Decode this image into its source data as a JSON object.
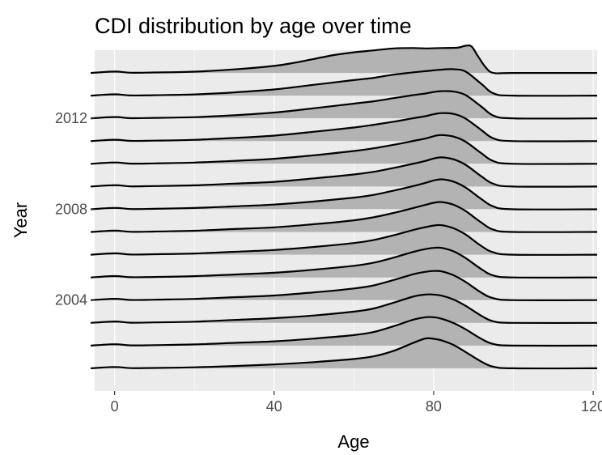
{
  "chart_data": {
    "type": "area",
    "subtype": "ridgeline",
    "title": "CDI distribution by age over time",
    "xlabel": "Age",
    "ylabel": "Year",
    "xlim": [
      -5,
      121
    ],
    "ylim": [
      2000,
      2015
    ],
    "x_ticks": [
      0,
      40,
      80,
      120
    ],
    "x_tick_labels": [
      "0",
      "40",
      "80",
      "120"
    ],
    "y_ticks": [
      2004,
      2008,
      2012
    ],
    "y_tick_labels": [
      "2004",
      "2008",
      "2012"
    ],
    "grid": true,
    "background": "#ebebeb",
    "grid_color": "#ffffff",
    "fill_color": "#b3b3b3",
    "line_color": "#000000",
    "tick_color": "#333333",
    "series": [
      {
        "year": 2001,
        "x": [
          -6,
          0,
          4,
          10,
          20,
          30,
          40,
          50,
          60,
          65,
          70,
          75,
          78,
          80,
          82,
          85,
          88,
          92,
          95,
          100,
          121
        ],
        "density": [
          0.0,
          0.035,
          0.005,
          0.01,
          0.025,
          0.06,
          0.1,
          0.16,
          0.24,
          0.31,
          0.45,
          0.66,
          0.77,
          0.76,
          0.72,
          0.6,
          0.42,
          0.17,
          0.04,
          0.0,
          0.0
        ]
      },
      {
        "year": 2002,
        "x": [
          -6,
          0,
          4,
          10,
          20,
          30,
          40,
          50,
          60,
          65,
          70,
          75,
          78,
          80,
          82,
          85,
          88,
          92,
          95,
          100,
          121
        ],
        "density": [
          0.0,
          0.035,
          0.005,
          0.012,
          0.03,
          0.07,
          0.11,
          0.18,
          0.27,
          0.35,
          0.5,
          0.67,
          0.73,
          0.73,
          0.69,
          0.58,
          0.42,
          0.17,
          0.04,
          0.0,
          0.0
        ]
      },
      {
        "year": 2003,
        "x": [
          -6,
          0,
          4,
          10,
          20,
          30,
          40,
          50,
          60,
          65,
          70,
          75,
          78,
          80,
          82,
          85,
          88,
          92,
          95,
          100,
          121
        ],
        "density": [
          0.0,
          0.035,
          0.005,
          0.012,
          0.032,
          0.075,
          0.12,
          0.19,
          0.29,
          0.37,
          0.52,
          0.68,
          0.73,
          0.73,
          0.7,
          0.6,
          0.44,
          0.18,
          0.04,
          0.0,
          0.0
        ]
      },
      {
        "year": 2004,
        "x": [
          -6,
          0,
          4,
          10,
          20,
          30,
          40,
          50,
          60,
          65,
          70,
          75,
          78,
          80,
          82,
          85,
          88,
          92,
          95,
          100,
          121
        ],
        "density": [
          0.0,
          0.035,
          0.005,
          0.012,
          0.032,
          0.075,
          0.12,
          0.2,
          0.3,
          0.38,
          0.52,
          0.67,
          0.73,
          0.75,
          0.74,
          0.64,
          0.47,
          0.19,
          0.05,
          0.0,
          0.0
        ]
      },
      {
        "year": 2005,
        "x": [
          -6,
          0,
          4,
          10,
          20,
          30,
          40,
          50,
          60,
          65,
          70,
          75,
          78,
          80,
          82,
          85,
          88,
          92,
          95,
          100,
          121
        ],
        "density": [
          0.0,
          0.035,
          0.005,
          0.012,
          0.032,
          0.075,
          0.12,
          0.2,
          0.3,
          0.38,
          0.51,
          0.66,
          0.73,
          0.76,
          0.76,
          0.67,
          0.5,
          0.21,
          0.05,
          0.0,
          0.0
        ]
      },
      {
        "year": 2006,
        "x": [
          -6,
          0,
          4,
          10,
          20,
          30,
          40,
          50,
          60,
          65,
          70,
          75,
          78,
          80,
          82,
          85,
          88,
          92,
          95,
          100,
          121
        ],
        "density": [
          0.0,
          0.035,
          0.005,
          0.012,
          0.032,
          0.075,
          0.12,
          0.2,
          0.3,
          0.38,
          0.5,
          0.64,
          0.71,
          0.75,
          0.76,
          0.68,
          0.52,
          0.22,
          0.06,
          0.0,
          0.0
        ]
      },
      {
        "year": 2007,
        "x": [
          -6,
          0,
          4,
          10,
          20,
          30,
          40,
          50,
          60,
          65,
          70,
          75,
          78,
          80,
          82,
          85,
          88,
          92,
          95,
          100,
          121
        ],
        "density": [
          0.0,
          0.035,
          0.005,
          0.012,
          0.032,
          0.075,
          0.12,
          0.2,
          0.3,
          0.38,
          0.49,
          0.62,
          0.7,
          0.75,
          0.77,
          0.7,
          0.54,
          0.24,
          0.06,
          0.0,
          0.0
        ]
      },
      {
        "year": 2008,
        "x": [
          -6,
          0,
          4,
          10,
          20,
          30,
          40,
          50,
          60,
          65,
          70,
          75,
          78,
          80,
          82,
          85,
          88,
          92,
          95,
          100,
          121
        ],
        "density": [
          0.0,
          0.035,
          0.005,
          0.012,
          0.032,
          0.075,
          0.12,
          0.2,
          0.3,
          0.37,
          0.48,
          0.6,
          0.68,
          0.74,
          0.77,
          0.71,
          0.56,
          0.26,
          0.07,
          0.0,
          0.0
        ]
      },
      {
        "year": 2009,
        "x": [
          -6,
          0,
          4,
          10,
          20,
          30,
          40,
          50,
          60,
          65,
          70,
          75,
          78,
          80,
          82,
          85,
          88,
          92,
          95,
          100,
          121
        ],
        "density": [
          0.0,
          0.035,
          0.005,
          0.012,
          0.032,
          0.075,
          0.12,
          0.21,
          0.31,
          0.38,
          0.48,
          0.59,
          0.66,
          0.72,
          0.75,
          0.7,
          0.56,
          0.26,
          0.07,
          0.0,
          0.0
        ]
      },
      {
        "year": 2010,
        "x": [
          -6,
          0,
          4,
          10,
          20,
          30,
          40,
          50,
          60,
          65,
          70,
          75,
          78,
          80,
          82,
          85,
          88,
          92,
          95,
          100,
          121
        ],
        "density": [
          0.0,
          0.035,
          0.005,
          0.012,
          0.032,
          0.075,
          0.13,
          0.22,
          0.33,
          0.4,
          0.49,
          0.59,
          0.65,
          0.71,
          0.74,
          0.7,
          0.57,
          0.27,
          0.07,
          0.0,
          0.0
        ]
      },
      {
        "year": 2011,
        "x": [
          -6,
          0,
          4,
          10,
          20,
          30,
          40,
          50,
          60,
          65,
          70,
          75,
          78,
          80,
          82,
          85,
          88,
          92,
          95,
          100,
          121
        ],
        "density": [
          0.0,
          0.035,
          0.005,
          0.012,
          0.032,
          0.08,
          0.14,
          0.24,
          0.35,
          0.42,
          0.5,
          0.59,
          0.64,
          0.69,
          0.72,
          0.7,
          0.58,
          0.28,
          0.07,
          0.0,
          0.0
        ]
      },
      {
        "year": 2012,
        "x": [
          -6,
          0,
          4,
          10,
          20,
          30,
          40,
          50,
          60,
          65,
          70,
          75,
          78,
          80,
          82,
          85,
          88,
          92,
          95,
          100,
          121
        ],
        "density": [
          0.0,
          0.035,
          0.005,
          0.012,
          0.032,
          0.08,
          0.15,
          0.26,
          0.38,
          0.44,
          0.52,
          0.6,
          0.64,
          0.68,
          0.7,
          0.69,
          0.6,
          0.3,
          0.07,
          0.0,
          0.0
        ]
      },
      {
        "year": 2013,
        "x": [
          -6,
          0,
          4,
          10,
          20,
          30,
          40,
          50,
          60,
          65,
          70,
          75,
          78,
          80,
          82,
          85,
          88,
          92,
          95,
          100,
          121
        ],
        "density": [
          0.0,
          0.035,
          0.005,
          0.012,
          0.032,
          0.085,
          0.16,
          0.28,
          0.4,
          0.46,
          0.54,
          0.6,
          0.63,
          0.65,
          0.67,
          0.68,
          0.62,
          0.3,
          0.06,
          0.0,
          0.0
        ]
      },
      {
        "year": 2014,
        "x": [
          -6,
          0,
          4,
          10,
          20,
          30,
          40,
          45,
          50,
          55,
          60,
          65,
          70,
          75,
          78,
          82,
          86,
          88,
          89.5,
          91,
          93,
          95,
          100,
          121
        ],
        "density": [
          0.0,
          0.035,
          0.005,
          0.012,
          0.032,
          0.09,
          0.18,
          0.26,
          0.36,
          0.46,
          0.53,
          0.58,
          0.63,
          0.64,
          0.63,
          0.64,
          0.65,
          0.7,
          0.68,
          0.45,
          0.15,
          0.0,
          0.0,
          0.0
        ]
      }
    ]
  }
}
